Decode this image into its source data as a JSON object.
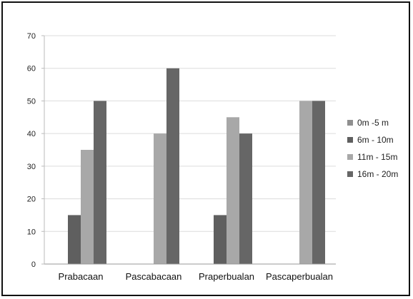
{
  "chart_data": {
    "type": "bar",
    "categories": [
      "Prabacaan",
      "Pascabacaan",
      "Praperbualan",
      "Pascaperbualan"
    ],
    "series": [
      {
        "name": "0m -5 m",
        "color": "#8f8f8f",
        "values": [
          0,
          0,
          0,
          0
        ]
      },
      {
        "name": "6m - 10m",
        "color": "#5f5f5f",
        "values": [
          15,
          0,
          15,
          0
        ]
      },
      {
        "name": "11m - 15m",
        "color": "#a8a8a8",
        "values": [
          35,
          40,
          45,
          50
        ]
      },
      {
        "name": "16m - 20m",
        "color": "#666666",
        "values": [
          50,
          60,
          40,
          50
        ]
      }
    ],
    "ylim": [
      0,
      70
    ],
    "yticks": [
      0,
      10,
      20,
      30,
      40,
      50,
      60,
      70
    ],
    "grid": true,
    "legend_position": "right",
    "title": "",
    "xlabel": "",
    "ylabel": ""
  }
}
